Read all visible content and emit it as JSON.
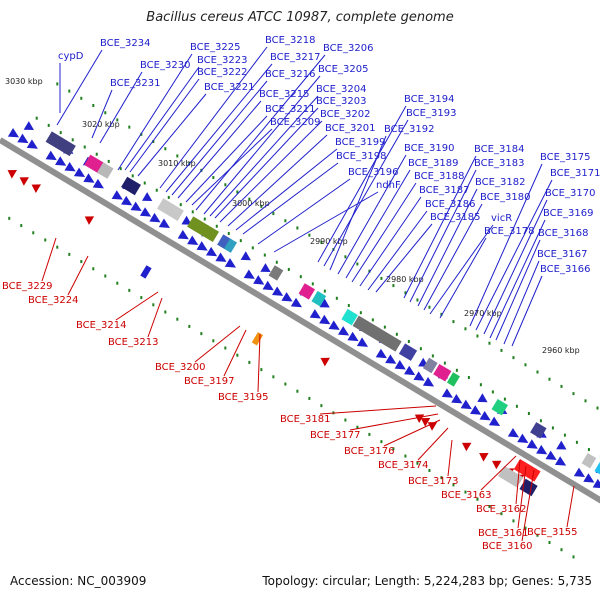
{
  "title": "Bacillus cereus ATCC 10987, complete genome",
  "footer": {
    "accession": "Accession: NC_003909",
    "summary": "Topology: circular; Length: 5,224,283 bp; Genes: 5,735"
  },
  "colors": {
    "forward": "#2020cc",
    "reverse": "#cc0000",
    "backbone": "#909090",
    "tick": "#208020"
  },
  "ticks": [
    "3030 kbp",
    "3020 kbp",
    "3010 kbp",
    "3000 kbp",
    "2990 kbp",
    "2980 kbp",
    "2970 kbp",
    "2960 kbp"
  ],
  "forward_labels": [
    "cypD",
    "BCE_3234",
    "BCE_3231",
    "BCE_3230",
    "BCE_3225",
    "BCE_3223",
    "BCE_3222",
    "BCE_3221",
    "BCE_3218",
    "BCE_3217",
    "BCE_3216",
    "BCE_3215",
    "BCE_3211",
    "BCE_3209",
    "BCE_3206",
    "BCE_3205",
    "BCE_3204",
    "BCE_3203",
    "BCE_3202",
    "BCE_3201",
    "BCE_3199",
    "BCE_3198",
    "BCE_3196",
    "ndhF",
    "BCE_3194",
    "BCE_3193",
    "BCE_3192",
    "BCE_3190",
    "BCE_3189",
    "BCE_3188",
    "BCE_3187",
    "BCE_3186",
    "BCE_3185",
    "BCE_3184",
    "BCE_3183",
    "BCE_3182",
    "BCE_3180",
    "vicR",
    "BCE_3178",
    "BCE_3175",
    "BCE_3171",
    "BCE_3170",
    "BCE_3169",
    "BCE_3168",
    "BCE_3167",
    "BCE_3166"
  ],
  "reverse_labels": [
    "BCE_3229",
    "BCE_3224",
    "BCE_3214",
    "BCE_3213",
    "BCE_3200",
    "BCE_3197",
    "BCE_3195",
    "BCE_3181",
    "BCE_3177",
    "BCE_3176",
    "BCE_3174",
    "BCE_3173",
    "BCE_3163",
    "BCE_3162",
    "BCE_3161",
    "BCE_3160",
    "BCE_3155"
  ]
}
